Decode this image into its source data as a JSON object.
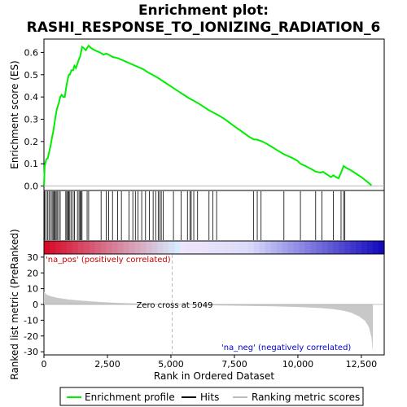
{
  "chart_data": {
    "type": "line",
    "title_line1": "Enrichment plot:",
    "title_line2": "RASHI_RESPONSE_TO_IONIZING_RADIATION_6",
    "top_panel": {
      "ylabel": "Enrichment score (ES)",
      "ylim": [
        -0.02,
        0.66
      ],
      "yticks": [
        0.0,
        0.1,
        0.2,
        0.3,
        0.4,
        0.5,
        0.6
      ],
      "ytick_labels": [
        "0.0",
        "0.1",
        "0.2",
        "0.3",
        "0.4",
        "0.5",
        "0.6"
      ],
      "series_color": "#00ee00",
      "es_curve": [
        [
          0,
          0.0
        ],
        [
          30,
          0.09
        ],
        [
          90,
          0.12
        ],
        [
          150,
          0.125
        ],
        [
          200,
          0.15
        ],
        [
          260,
          0.18
        ],
        [
          320,
          0.22
        ],
        [
          360,
          0.24
        ],
        [
          400,
          0.27
        ],
        [
          440,
          0.3
        ],
        [
          480,
          0.33
        ],
        [
          520,
          0.35
        ],
        [
          580,
          0.37
        ],
        [
          640,
          0.4
        ],
        [
          700,
          0.41
        ],
        [
          760,
          0.4
        ],
        [
          820,
          0.4
        ],
        [
          860,
          0.43
        ],
        [
          900,
          0.46
        ],
        [
          940,
          0.48
        ],
        [
          980,
          0.5
        ],
        [
          1020,
          0.5
        ],
        [
          1080,
          0.52
        ],
        [
          1150,
          0.52
        ],
        [
          1200,
          0.54
        ],
        [
          1260,
          0.53
        ],
        [
          1320,
          0.55
        ],
        [
          1380,
          0.57
        ],
        [
          1420,
          0.58
        ],
        [
          1460,
          0.6
        ],
        [
          1500,
          0.625
        ],
        [
          1560,
          0.62
        ],
        [
          1650,
          0.61
        ],
        [
          1700,
          0.62
        ],
        [
          1760,
          0.63
        ],
        [
          1850,
          0.62
        ],
        [
          2000,
          0.61
        ],
        [
          2200,
          0.6
        ],
        [
          2350,
          0.59
        ],
        [
          2450,
          0.595
        ],
        [
          2550,
          0.59
        ],
        [
          2700,
          0.58
        ],
        [
          2900,
          0.575
        ],
        [
          3100,
          0.565
        ],
        [
          3300,
          0.555
        ],
        [
          3500,
          0.545
        ],
        [
          3700,
          0.535
        ],
        [
          3900,
          0.525
        ],
        [
          4100,
          0.51
        ],
        [
          4300,
          0.498
        ],
        [
          4500,
          0.485
        ],
        [
          4700,
          0.47
        ],
        [
          4900,
          0.455
        ],
        [
          5100,
          0.44
        ],
        [
          5300,
          0.425
        ],
        [
          5500,
          0.41
        ],
        [
          5700,
          0.395
        ],
        [
          5900,
          0.383
        ],
        [
          6100,
          0.37
        ],
        [
          6300,
          0.355
        ],
        [
          6500,
          0.34
        ],
        [
          6700,
          0.328
        ],
        [
          6900,
          0.316
        ],
        [
          7100,
          0.302
        ],
        [
          7300,
          0.285
        ],
        [
          7500,
          0.268
        ],
        [
          7700,
          0.252
        ],
        [
          7900,
          0.236
        ],
        [
          8100,
          0.22
        ],
        [
          8250,
          0.21
        ],
        [
          8400,
          0.208
        ],
        [
          8600,
          0.2
        ],
        [
          8800,
          0.188
        ],
        [
          9000,
          0.174
        ],
        [
          9200,
          0.16
        ],
        [
          9400,
          0.146
        ],
        [
          9600,
          0.135
        ],
        [
          9800,
          0.125
        ],
        [
          10000,
          0.112
        ],
        [
          10100,
          0.1
        ],
        [
          10300,
          0.09
        ],
        [
          10500,
          0.078
        ],
        [
          10700,
          0.065
        ],
        [
          10900,
          0.06
        ],
        [
          11000,
          0.064
        ],
        [
          11100,
          0.055
        ],
        [
          11200,
          0.048
        ],
        [
          11300,
          0.04
        ],
        [
          11400,
          0.048
        ],
        [
          11500,
          0.04
        ],
        [
          11600,
          0.035
        ],
        [
          11700,
          0.06
        ],
        [
          11800,
          0.09
        ],
        [
          11900,
          0.082
        ],
        [
          12100,
          0.07
        ],
        [
          12300,
          0.055
        ],
        [
          12500,
          0.04
        ],
        [
          12700,
          0.022
        ],
        [
          12900,
          0.003
        ]
      ]
    },
    "hits": [
      30,
      90,
      150,
      200,
      260,
      320,
      360,
      400,
      440,
      480,
      520,
      580,
      640,
      860,
      900,
      940,
      980,
      1020,
      1080,
      1150,
      1200,
      1320,
      1380,
      1420,
      1460,
      1500,
      1700,
      1760,
      2250,
      2450,
      2550,
      2700,
      2900,
      3050,
      3350,
      3500,
      3600,
      3700,
      3850,
      4000,
      4150,
      4300,
      4400,
      4500,
      4560,
      4620,
      4700,
      5100,
      5400,
      5650,
      5750,
      5800,
      5900,
      6050,
      6500,
      6650,
      6800,
      8250,
      8400,
      8550,
      9450,
      10100,
      10700,
      10950,
      11400,
      11700,
      11800,
      11850
    ],
    "bottom_panel": {
      "ylabel": "Ranked list metric (PreRanked)",
      "ylim": [
        -32,
        32
      ],
      "yticks": [
        -30,
        -20,
        -10,
        0,
        10,
        20,
        30
      ],
      "ytick_labels": [
        "-30",
        "-20",
        "-10",
        "0",
        "10",
        "20",
        "30"
      ],
      "metric_curve": [
        [
          0,
          8
        ],
        [
          100,
          6.2
        ],
        [
          300,
          5.0
        ],
        [
          600,
          4.0
        ],
        [
          1000,
          3.1
        ],
        [
          1500,
          2.4
        ],
        [
          2000,
          1.8
        ],
        [
          2500,
          1.3
        ],
        [
          3000,
          0.9
        ],
        [
          3500,
          0.6
        ],
        [
          4000,
          0.35
        ],
        [
          4500,
          0.15
        ],
        [
          5049,
          0.0
        ],
        [
          6000,
          -0.3
        ],
        [
          7000,
          -0.6
        ],
        [
          8000,
          -0.9
        ],
        [
          9000,
          -1.2
        ],
        [
          10000,
          -1.6
        ],
        [
          10800,
          -2.2
        ],
        [
          11400,
          -3.0
        ],
        [
          11800,
          -4.0
        ],
        [
          12100,
          -5.2
        ],
        [
          12400,
          -7.5
        ],
        [
          12650,
          -10.5
        ],
        [
          12800,
          -14.5
        ],
        [
          12900,
          -21
        ],
        [
          12950,
          -30
        ]
      ],
      "zero_cross_label": "Zero cross at 5049",
      "zero_cross_rank": 5049,
      "pos_label": "'na_pos' (positively correlated)",
      "neg_label": "'na_neg' (negatively correlated)"
    },
    "x_axis": {
      "label": "Rank in Ordered Dataset",
      "xlim": [
        0,
        13400
      ],
      "ticks": [
        0,
        2500,
        5000,
        7500,
        10000,
        12500
      ],
      "tick_labels": [
        "0",
        "2,500",
        "5,000",
        "7,500",
        "10,000",
        "12,500"
      ]
    },
    "legend": {
      "items": [
        {
          "label": "Enrichment profile",
          "color": "#00ee00",
          "kind": "line"
        },
        {
          "label": "Hits",
          "color": "#000000",
          "kind": "line"
        },
        {
          "label": "Ranking metric scores",
          "color": "#bbbbbb",
          "kind": "line"
        }
      ],
      "placement": "bottom"
    },
    "colors": {
      "es_line": "#00ee00",
      "metric_fill": "#c8c8c8",
      "pos_text": "#cc0000",
      "neg_text": "#0000cc",
      "zero_line": "#bbbbbb"
    }
  }
}
